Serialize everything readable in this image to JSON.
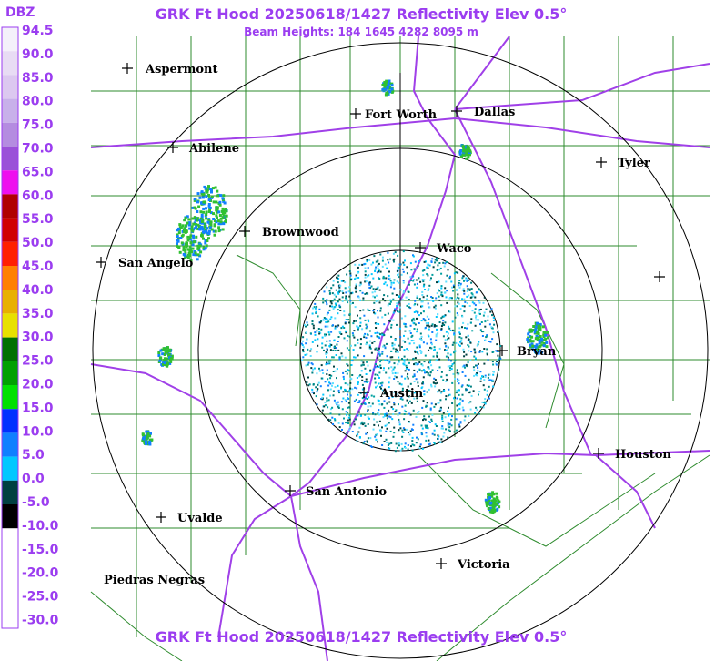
{
  "header": {
    "title": "GRK Ft Hood 20250618/1427 Reflectivity Elev 0.5°",
    "subtitle": "Beam Heights: 184 1645 4282 8095 m"
  },
  "footer": {
    "title": "GRK Ft Hood 20250618/1427 Reflectivity Elev 0.5°"
  },
  "legend": {
    "title": "DBZ",
    "labels": [
      "94.5",
      "90.0",
      "85.0",
      "80.0",
      "75.0",
      "70.0",
      "65.0",
      "60.0",
      "55.0",
      "50.0",
      "45.0",
      "40.0",
      "35.0",
      "30.0",
      "25.0",
      "20.0",
      "15.0",
      "10.0",
      "5.0",
      "0.0",
      "-5.0",
      "-10.0",
      "-15.0",
      "-20.0",
      "-25.0",
      "-30.0"
    ]
  },
  "cities": [
    "Aspermont",
    "Fort Worth",
    "Dallas",
    "Abilene",
    "Tyler",
    "Brownwood",
    "Waco",
    "San Angelo",
    "Bryan",
    "Austin",
    "Houston",
    "San Antonio",
    "Uvalde",
    "Piedras Negras",
    "Victoria"
  ]
}
